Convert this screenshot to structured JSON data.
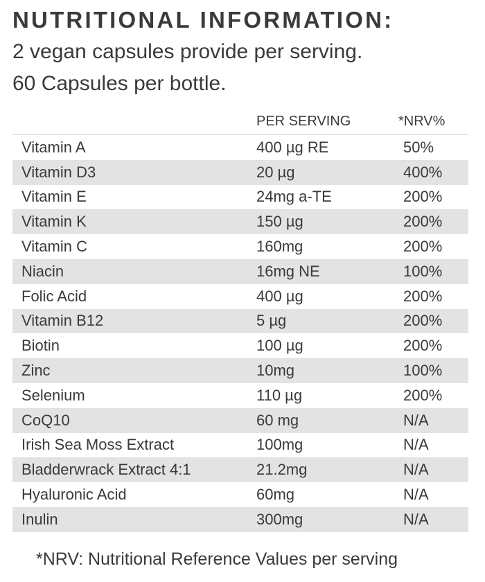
{
  "heading": {
    "title": "NUTRITIONAL INFORMATION:",
    "line1": "2 vegan capsules provide per serving.",
    "line2": "60 Capsules per bottle."
  },
  "table": {
    "headers": {
      "name": "",
      "serving": "PER SERVING",
      "nrv": "*NRV%"
    },
    "rows": [
      {
        "name": "Vitamin A",
        "serving": "400 µg RE",
        "nrv": "50%"
      },
      {
        "name": "Vitamin D3",
        "serving": "20 µg",
        "nrv": "400%"
      },
      {
        "name": "Vitamin E",
        "serving": "24mg a-TE",
        "nrv": "200%"
      },
      {
        "name": "Vitamin K",
        "serving": "150 µg",
        "nrv": "200%"
      },
      {
        "name": "Vitamin C",
        "serving": "160mg",
        "nrv": "200%"
      },
      {
        "name": "Niacin",
        "serving": "16mg NE",
        "nrv": "100%"
      },
      {
        "name": "Folic Acid",
        "serving": "400 µg",
        "nrv": "200%"
      },
      {
        "name": "Vitamin B12",
        "serving": "5 µg",
        "nrv": "200%"
      },
      {
        "name": "Biotin",
        "serving": "100 µg",
        "nrv": "200%"
      },
      {
        "name": "Zinc",
        "serving": "10mg",
        "nrv": "100%"
      },
      {
        "name": "Selenium",
        "serving": "110 µg",
        "nrv": "200%"
      },
      {
        "name": "CoQ10",
        "serving": "60 mg",
        "nrv": "N/A"
      },
      {
        "name": "Irish Sea Moss Extract",
        "serving": "100mg",
        "nrv": "N/A"
      },
      {
        "name": "Bladderwrack Extract 4:1",
        "serving": "21.2mg",
        "nrv": "N/A"
      },
      {
        "name": "Hyaluronic Acid",
        "serving": "60mg",
        "nrv": "N/A"
      },
      {
        "name": "Inulin",
        "serving": "300mg",
        "nrv": "N/A"
      }
    ]
  },
  "footnote": "*NRV: Nutritional Reference Values per serving"
}
